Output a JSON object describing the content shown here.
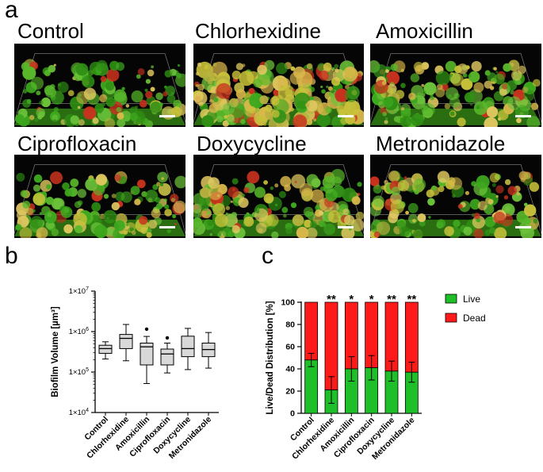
{
  "panel_a": {
    "letter": "a",
    "images": [
      {
        "title": "Control",
        "seed": 1,
        "density": 0.55,
        "yellow": 0.35
      },
      {
        "title": "Chlorhexidine",
        "seed": 2,
        "density": 0.85,
        "yellow": 0.85
      },
      {
        "title": "Amoxicillin",
        "seed": 3,
        "density": 0.6,
        "yellow": 0.45
      },
      {
        "title": "Ciprofloxacin",
        "seed": 4,
        "density": 0.55,
        "yellow": 0.4
      },
      {
        "title": "Doxycycline",
        "seed": 5,
        "density": 0.6,
        "yellow": 0.55
      },
      {
        "title": "Metronidazole",
        "seed": 6,
        "density": 0.55,
        "yellow": 0.45
      }
    ]
  },
  "chart_data": [
    {
      "panel": "b",
      "type": "box",
      "ylabel": "Biofilm Volume [µm³]",
      "yscale": "log",
      "ylim": [
        10000,
        10000000
      ],
      "yticks": [
        {
          "value": 10000,
          "base": "1×10",
          "exp": "4"
        },
        {
          "value": 100000,
          "base": "1×10",
          "exp": "5"
        },
        {
          "value": 1000000,
          "base": "1×10",
          "exp": "6"
        },
        {
          "value": 10000000,
          "base": "1×10",
          "exp": "7"
        }
      ],
      "categories": [
        "Control",
        "Chlorhexidine",
        "Amoxicillin",
        "Ciprofloxacin",
        "Doxycycline",
        "Metronidazole"
      ],
      "boxes": [
        {
          "min": 210000,
          "q1": 290000,
          "median": 380000,
          "q3": 460000,
          "max": 560000,
          "outliers": []
        },
        {
          "min": 190000,
          "q1": 380000,
          "median": 680000,
          "q3": 850000,
          "max": 1500000,
          "outliers": []
        },
        {
          "min": 52000,
          "q1": 150000,
          "median": 420000,
          "q3": 520000,
          "max": 760000,
          "outliers": [
            1150000
          ]
        },
        {
          "min": 95000,
          "q1": 150000,
          "median": 280000,
          "q3": 370000,
          "max": 520000,
          "outliers": [
            700000
          ]
        },
        {
          "min": 115000,
          "q1": 240000,
          "median": 380000,
          "q3": 770000,
          "max": 1200000,
          "outliers": []
        },
        {
          "min": 125000,
          "q1": 240000,
          "median": 360000,
          "q3": 520000,
          "max": 950000,
          "outliers": []
        }
      ],
      "box_color": "#d9d9d9"
    },
    {
      "panel": "c",
      "type": "stacked_bar",
      "ylabel": "Live/Dead Distribution [%]",
      "ylim": [
        0,
        100
      ],
      "yticks": [
        0,
        20,
        40,
        60,
        80,
        100
      ],
      "categories": [
        "Control",
        "Chlorhexidine",
        "Amoxicillin",
        "Ciprofloxacin",
        "Doxycycline",
        "Metronidazole"
      ],
      "series": [
        {
          "name": "Live",
          "color": "#1fbf2a",
          "values": [
            48,
            21,
            40,
            41,
            38,
            37
          ],
          "errors": [
            6,
            12,
            11,
            11,
            9,
            9
          ]
        },
        {
          "name": "Dead",
          "color": "#ff1a1a",
          "values": [
            52,
            79,
            60,
            59,
            62,
            63
          ]
        }
      ],
      "significance": [
        "",
        "**",
        "*",
        "*",
        "**",
        "**"
      ],
      "legend_position": "right"
    }
  ]
}
